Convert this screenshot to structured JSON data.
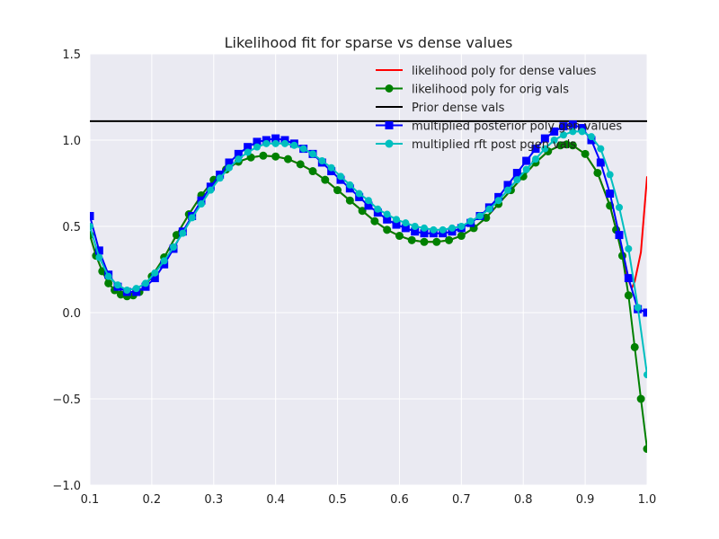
{
  "chart_data": {
    "type": "line",
    "title": "Likelihood fit for sparse vs dense values",
    "xlabel": "",
    "ylabel": "",
    "xlim": [
      0.1,
      1.0
    ],
    "ylim": [
      -1.0,
      1.5
    ],
    "xticks": [
      "0.1",
      "0.2",
      "0.3",
      "0.4",
      "0.5",
      "0.6",
      "0.7",
      "0.8",
      "0.9",
      "1.0"
    ],
    "yticks": [
      "−1.0",
      "−0.5",
      "0.0",
      "0.5",
      "1.0",
      "1.5"
    ],
    "grid": true,
    "legend_position": "top-right",
    "colors": {
      "background": "#eaeaf2",
      "grid": "#ffffff",
      "dense": "#ff0000",
      "orig": "#008000",
      "prior": "#000000",
      "posterior": "#0000ff",
      "rft": "#00bfbf"
    },
    "series": [
      {
        "name": "likelihood poly for dense values",
        "color": "#ff0000",
        "marker": "none",
        "x": [
          0.1,
          0.11,
          0.12,
          0.13,
          0.14,
          0.15,
          0.16,
          0.17,
          0.18,
          0.19,
          0.2,
          0.22,
          0.24,
          0.26,
          0.28,
          0.3,
          0.32,
          0.34,
          0.36,
          0.38,
          0.4,
          0.42,
          0.44,
          0.46,
          0.48,
          0.5,
          0.52,
          0.54,
          0.56,
          0.58,
          0.6,
          0.62,
          0.64,
          0.66,
          0.68,
          0.7,
          0.72,
          0.74,
          0.76,
          0.78,
          0.8,
          0.82,
          0.84,
          0.86,
          0.87,
          0.88,
          0.9,
          0.92,
          0.94,
          0.95,
          0.96,
          0.97,
          0.975,
          0.98,
          0.99,
          1.0
        ],
        "y": [
          0.45,
          0.33,
          0.24,
          0.17,
          0.13,
          0.105,
          0.095,
          0.1,
          0.12,
          0.16,
          0.21,
          0.32,
          0.45,
          0.57,
          0.68,
          0.77,
          0.83,
          0.875,
          0.9,
          0.91,
          0.905,
          0.89,
          0.86,
          0.82,
          0.77,
          0.71,
          0.65,
          0.59,
          0.53,
          0.48,
          0.445,
          0.42,
          0.41,
          0.41,
          0.42,
          0.445,
          0.49,
          0.55,
          0.63,
          0.71,
          0.79,
          0.87,
          0.935,
          0.97,
          0.975,
          0.97,
          0.92,
          0.81,
          0.62,
          0.48,
          0.33,
          0.19,
          0.14,
          0.18,
          0.35,
          0.79
        ]
      },
      {
        "name": "likelihood poly for orig vals",
        "color": "#008000",
        "marker": "circle",
        "x": [
          0.1,
          0.11,
          0.12,
          0.13,
          0.14,
          0.15,
          0.16,
          0.17,
          0.18,
          0.19,
          0.2,
          0.22,
          0.24,
          0.26,
          0.28,
          0.3,
          0.32,
          0.34,
          0.36,
          0.38,
          0.4,
          0.42,
          0.44,
          0.46,
          0.48,
          0.5,
          0.52,
          0.54,
          0.56,
          0.58,
          0.6,
          0.62,
          0.64,
          0.66,
          0.68,
          0.7,
          0.72,
          0.74,
          0.76,
          0.78,
          0.8,
          0.82,
          0.84,
          0.86,
          0.87,
          0.88,
          0.9,
          0.92,
          0.94,
          0.95,
          0.96,
          0.97,
          0.98,
          0.99,
          1.0
        ],
        "y": [
          0.45,
          0.33,
          0.24,
          0.17,
          0.13,
          0.105,
          0.095,
          0.1,
          0.12,
          0.16,
          0.21,
          0.32,
          0.45,
          0.57,
          0.68,
          0.77,
          0.83,
          0.875,
          0.9,
          0.91,
          0.905,
          0.89,
          0.86,
          0.82,
          0.77,
          0.71,
          0.65,
          0.59,
          0.53,
          0.48,
          0.445,
          0.42,
          0.41,
          0.41,
          0.42,
          0.445,
          0.49,
          0.55,
          0.63,
          0.71,
          0.79,
          0.87,
          0.935,
          0.97,
          0.975,
          0.97,
          0.92,
          0.81,
          0.62,
          0.48,
          0.33,
          0.1,
          -0.2,
          -0.5,
          -0.79
        ]
      },
      {
        "name": "Prior dense vals",
        "color": "#000000",
        "marker": "none",
        "x": [
          0.1,
          1.0
        ],
        "y": [
          1.11,
          1.11
        ]
      },
      {
        "name": "multiplied posterior poly gen values",
        "color": "#0000ff",
        "marker": "square",
        "x": [
          0.1,
          0.115,
          0.13,
          0.145,
          0.16,
          0.175,
          0.19,
          0.205,
          0.22,
          0.235,
          0.25,
          0.265,
          0.28,
          0.295,
          0.31,
          0.325,
          0.34,
          0.355,
          0.37,
          0.385,
          0.4,
          0.415,
          0.43,
          0.445,
          0.46,
          0.475,
          0.49,
          0.505,
          0.52,
          0.535,
          0.55,
          0.565,
          0.58,
          0.595,
          0.61,
          0.625,
          0.64,
          0.655,
          0.67,
          0.685,
          0.7,
          0.715,
          0.73,
          0.745,
          0.76,
          0.775,
          0.79,
          0.805,
          0.82,
          0.835,
          0.85,
          0.865,
          0.88,
          0.895,
          0.91,
          0.925,
          0.94,
          0.955,
          0.97,
          0.985,
          1.0
        ],
        "y": [
          0.56,
          0.36,
          0.22,
          0.15,
          0.12,
          0.12,
          0.15,
          0.2,
          0.28,
          0.37,
          0.47,
          0.56,
          0.65,
          0.73,
          0.8,
          0.87,
          0.92,
          0.96,
          0.99,
          1.0,
          1.01,
          1.0,
          0.98,
          0.95,
          0.92,
          0.87,
          0.82,
          0.77,
          0.72,
          0.67,
          0.62,
          0.58,
          0.54,
          0.51,
          0.49,
          0.47,
          0.46,
          0.46,
          0.46,
          0.47,
          0.49,
          0.52,
          0.56,
          0.61,
          0.67,
          0.74,
          0.81,
          0.88,
          0.95,
          1.01,
          1.05,
          1.08,
          1.09,
          1.07,
          1.0,
          0.87,
          0.69,
          0.45,
          0.2,
          0.02,
          0.0
        ]
      },
      {
        "name": "multiplied rft post pgen vals",
        "color": "#00bfbf",
        "marker": "circle",
        "x": [
          0.1,
          0.115,
          0.13,
          0.145,
          0.16,
          0.175,
          0.19,
          0.205,
          0.22,
          0.235,
          0.25,
          0.265,
          0.28,
          0.295,
          0.31,
          0.325,
          0.34,
          0.355,
          0.37,
          0.385,
          0.4,
          0.415,
          0.43,
          0.445,
          0.46,
          0.475,
          0.49,
          0.505,
          0.52,
          0.535,
          0.55,
          0.565,
          0.58,
          0.595,
          0.61,
          0.625,
          0.64,
          0.655,
          0.67,
          0.685,
          0.7,
          0.715,
          0.73,
          0.745,
          0.76,
          0.775,
          0.79,
          0.805,
          0.82,
          0.835,
          0.85,
          0.865,
          0.88,
          0.895,
          0.91,
          0.925,
          0.94,
          0.955,
          0.97,
          0.985,
          1.0
        ],
        "y": [
          0.5,
          0.32,
          0.21,
          0.16,
          0.13,
          0.14,
          0.17,
          0.23,
          0.3,
          0.38,
          0.46,
          0.55,
          0.63,
          0.71,
          0.78,
          0.84,
          0.89,
          0.93,
          0.96,
          0.98,
          0.98,
          0.98,
          0.97,
          0.95,
          0.92,
          0.88,
          0.84,
          0.79,
          0.74,
          0.69,
          0.65,
          0.6,
          0.57,
          0.54,
          0.52,
          0.5,
          0.49,
          0.48,
          0.48,
          0.49,
          0.5,
          0.53,
          0.56,
          0.6,
          0.65,
          0.71,
          0.77,
          0.83,
          0.89,
          0.95,
          1.0,
          1.03,
          1.05,
          1.05,
          1.02,
          0.95,
          0.8,
          0.61,
          0.37,
          0.03,
          -0.36
        ]
      }
    ]
  }
}
